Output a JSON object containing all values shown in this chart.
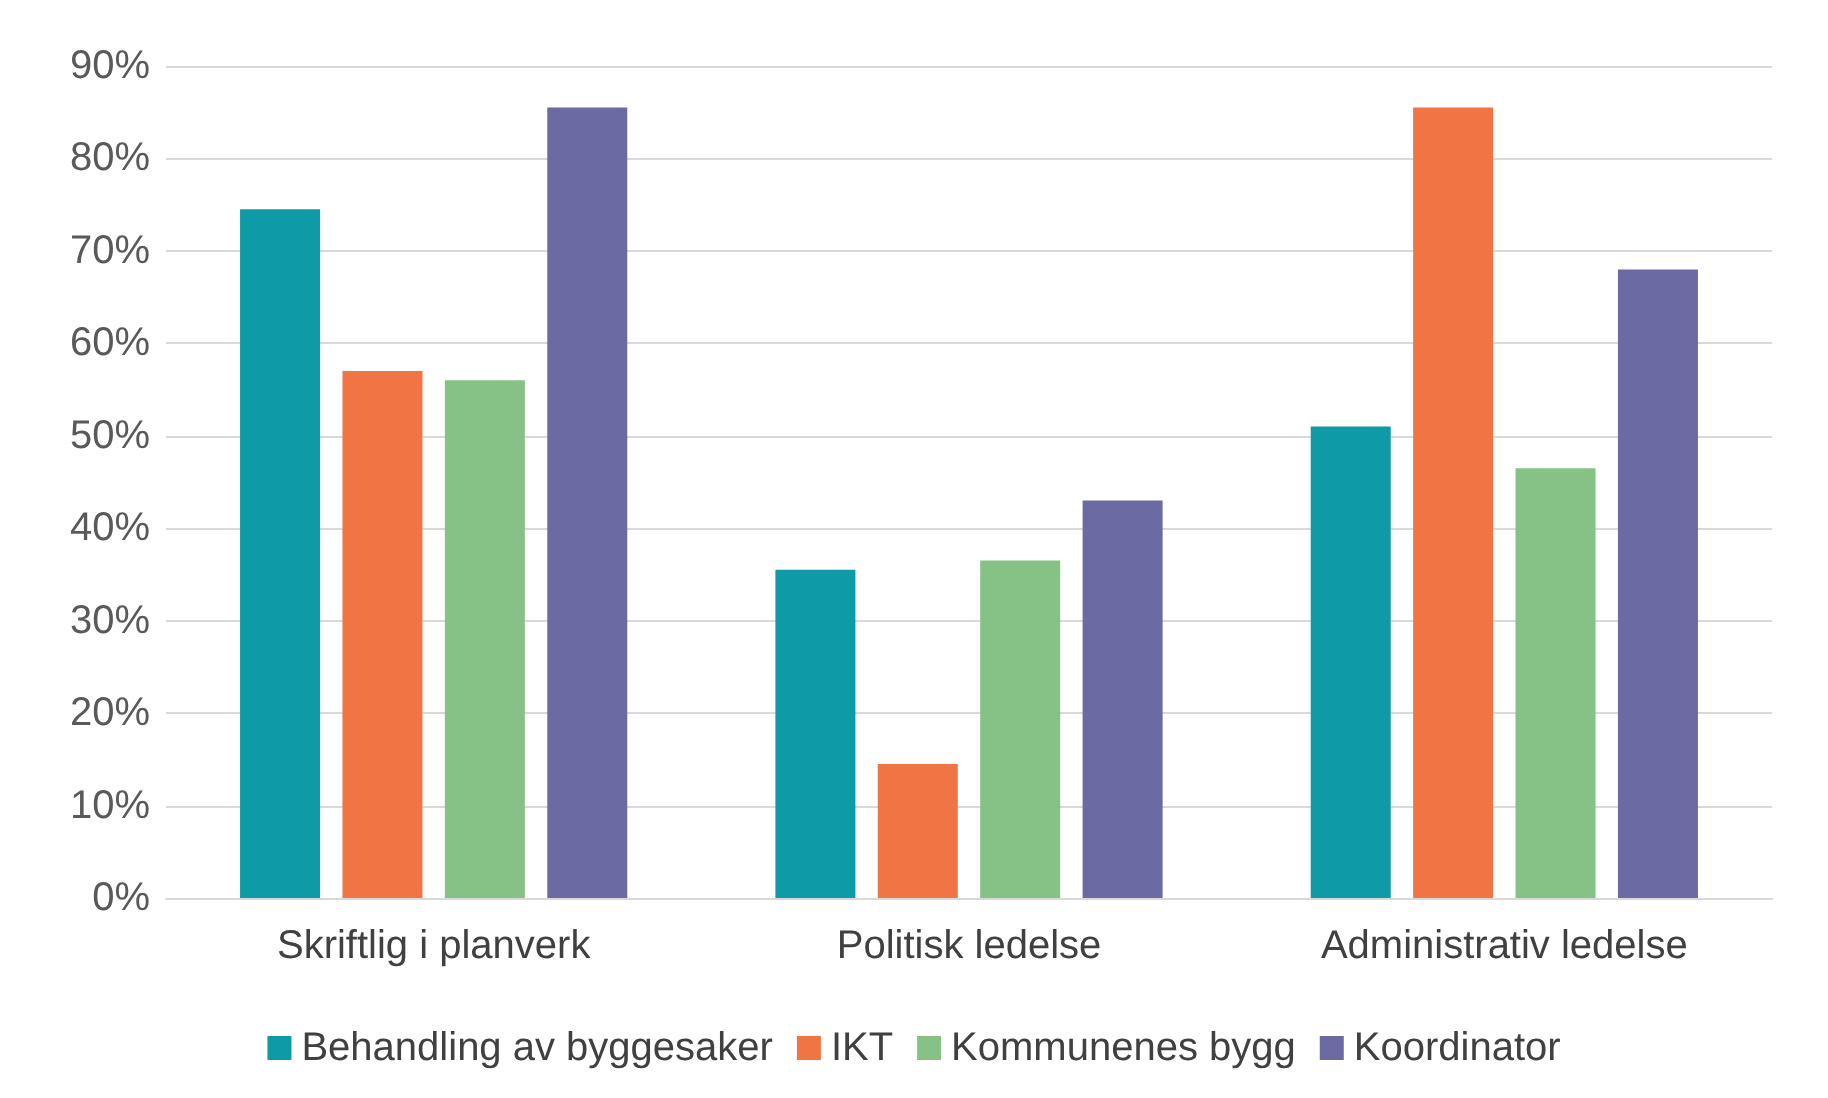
{
  "chart_data": {
    "type": "bar",
    "categories": [
      "Skriftlig i planverk",
      "Politisk ledelse",
      "Administrativ ledelse"
    ],
    "series": [
      {
        "name": "Behandling av byggesaker",
        "color": "#0e9aa7",
        "values": [
          74.5,
          35.5,
          51
        ]
      },
      {
        "name": "IKT",
        "color": "#f07444",
        "values": [
          57,
          14.5,
          85.5
        ]
      },
      {
        "name": "Kommunenes bygg",
        "color": "#86c185",
        "values": [
          56,
          36.5,
          46.5
        ]
      },
      {
        "name": "Koordinator",
        "color": "#6b6aa3",
        "values": [
          85.5,
          43,
          68
        ]
      }
    ],
    "ylim": [
      0,
      90
    ],
    "yticks": [
      {
        "value": 0,
        "label": "0%"
      },
      {
        "value": 10,
        "label": "10%"
      },
      {
        "value": 20,
        "label": "20%"
      },
      {
        "value": 30,
        "label": "30%"
      },
      {
        "value": 40,
        "label": "40%"
      },
      {
        "value": 50,
        "label": "50%"
      },
      {
        "value": 60,
        "label": "60%"
      },
      {
        "value": 70,
        "label": "70%"
      },
      {
        "value": 80,
        "label": "80%"
      },
      {
        "value": 90,
        "label": "90%"
      }
    ],
    "grid": "y",
    "legend": "bottom"
  }
}
